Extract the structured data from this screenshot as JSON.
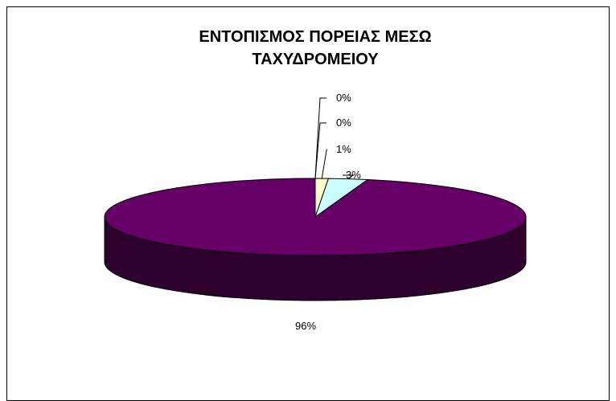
{
  "chart_data": {
    "type": "pie",
    "three_d": true,
    "title_lines": [
      "ΕΝΤΟΠΙΣΜΟΣ ΠΟΡΕΙΑΣ ΜΕΣΩ",
      "ΤΑΧΥΔΡΟΜΕΙΟΥ"
    ],
    "slices": [
      {
        "value": 0,
        "label": "0%",
        "color": "#9999FF"
      },
      {
        "value": 0,
        "label": "0%",
        "color": "#993366"
      },
      {
        "value": 1,
        "label": "1%",
        "color": "#FFFFCC"
      },
      {
        "value": 3,
        "label": "3%",
        "color": "#CCFFFF"
      },
      {
        "value": 96,
        "label": "96%",
        "color": "#660066"
      }
    ],
    "legend": "none"
  },
  "colors": {
    "border": "#000000",
    "background": "#FFFFFF"
  }
}
